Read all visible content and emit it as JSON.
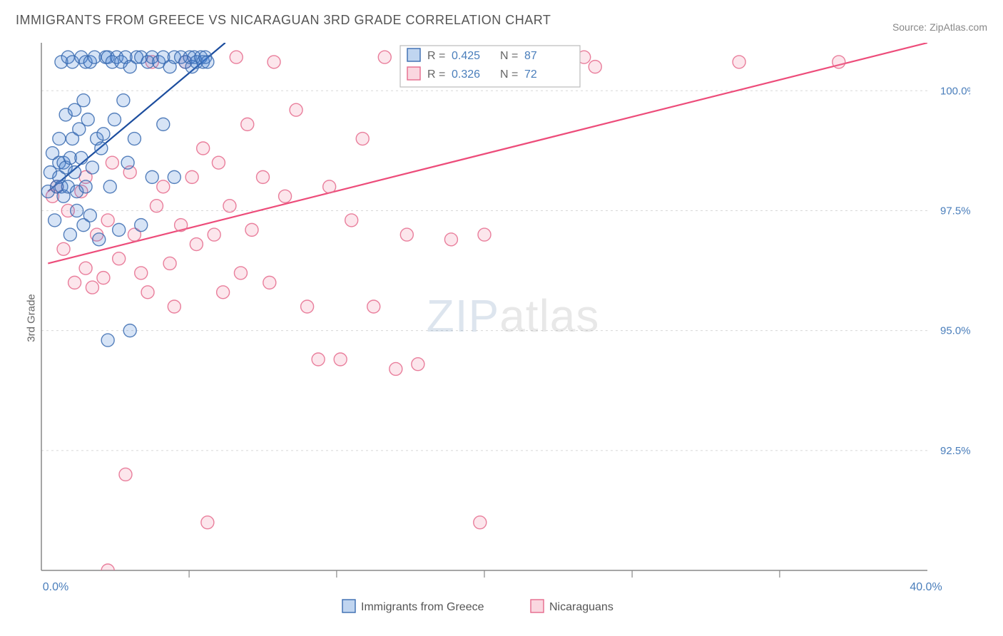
{
  "title": "IMMIGRANTS FROM GREECE VS NICARAGUAN 3RD GRADE CORRELATION CHART",
  "source_label": "Source:",
  "source_name": "ZipAtlas.com",
  "y_axis_label": "3rd Grade",
  "watermark_zip": "ZIP",
  "watermark_atlas": "atlas",
  "chart": {
    "type": "scatter",
    "background_color": "#ffffff",
    "grid_color": "#d8d8d8",
    "axis_color": "#888888",
    "x_range": [
      0,
      40
    ],
    "y_range": [
      90,
      101
    ],
    "x_ticks": [
      0,
      40
    ],
    "x_tick_labels": [
      "0.0%",
      "40.0%"
    ],
    "x_minor_ticks": [
      6.67,
      13.33,
      20,
      26.67,
      33.33
    ],
    "y_ticks": [
      92.5,
      95.0,
      97.5,
      100.0
    ],
    "y_tick_labels": [
      "92.5%",
      "95.0%",
      "97.5%",
      "100.0%"
    ],
    "tick_label_color": "#4a7ebb",
    "marker_radius": 9,
    "marker_fill_opacity": 0.22,
    "marker_stroke_opacity": 0.85,
    "line_width": 2.2
  },
  "series": [
    {
      "name": "Immigrants from Greece",
      "color": "#4a86d4",
      "stroke": "#3a6bb0",
      "line_color": "#1c4d9e",
      "r_label": "R =",
      "r_value": "0.425",
      "n_label": "N =",
      "n_value": "87",
      "regression": {
        "x1": 0.3,
        "y1": 97.9,
        "x2": 8.3,
        "y2": 101.0
      },
      "points": [
        [
          0.3,
          97.9
        ],
        [
          0.4,
          98.3
        ],
        [
          0.5,
          98.7
        ],
        [
          0.6,
          97.3
        ],
        [
          0.7,
          98.0
        ],
        [
          0.8,
          98.2
        ],
        [
          0.8,
          99.0
        ],
        [
          0.8,
          98.5
        ],
        [
          0.9,
          98.0
        ],
        [
          0.9,
          100.6
        ],
        [
          1.0,
          98.5
        ],
        [
          1.0,
          97.8
        ],
        [
          1.1,
          98.4
        ],
        [
          1.1,
          99.5
        ],
        [
          1.2,
          98.0
        ],
        [
          1.2,
          100.7
        ],
        [
          1.3,
          97.0
        ],
        [
          1.3,
          98.6
        ],
        [
          1.4,
          99.0
        ],
        [
          1.4,
          100.6
        ],
        [
          1.5,
          98.3
        ],
        [
          1.5,
          99.6
        ],
        [
          1.6,
          97.5
        ],
        [
          1.6,
          97.9
        ],
        [
          1.7,
          99.2
        ],
        [
          1.8,
          100.7
        ],
        [
          1.8,
          98.6
        ],
        [
          1.9,
          97.2
        ],
        [
          1.9,
          99.8
        ],
        [
          2.0,
          100.6
        ],
        [
          2.0,
          98.0
        ],
        [
          2.1,
          99.4
        ],
        [
          2.2,
          100.6
        ],
        [
          2.2,
          97.4
        ],
        [
          2.3,
          98.4
        ],
        [
          2.4,
          100.7
        ],
        [
          2.5,
          99.0
        ],
        [
          2.6,
          96.9
        ],
        [
          2.7,
          98.8
        ],
        [
          2.8,
          99.1
        ],
        [
          2.9,
          100.7
        ],
        [
          3.0,
          94.8
        ],
        [
          3.0,
          100.7
        ],
        [
          3.1,
          98.0
        ],
        [
          3.2,
          100.6
        ],
        [
          3.3,
          99.4
        ],
        [
          3.4,
          100.7
        ],
        [
          3.5,
          97.1
        ],
        [
          3.6,
          100.6
        ],
        [
          3.7,
          99.8
        ],
        [
          3.8,
          100.7
        ],
        [
          3.9,
          98.5
        ],
        [
          4.0,
          95.0
        ],
        [
          4.0,
          100.5
        ],
        [
          4.2,
          99.0
        ],
        [
          4.3,
          100.7
        ],
        [
          4.5,
          97.2
        ],
        [
          4.5,
          100.7
        ],
        [
          4.8,
          100.6
        ],
        [
          5.0,
          98.2
        ],
        [
          5.0,
          100.7
        ],
        [
          5.3,
          100.6
        ],
        [
          5.5,
          99.3
        ],
        [
          5.5,
          100.7
        ],
        [
          5.8,
          100.5
        ],
        [
          6.0,
          98.2
        ],
        [
          6.0,
          100.7
        ],
        [
          6.3,
          100.7
        ],
        [
          6.5,
          100.6
        ],
        [
          6.7,
          100.7
        ],
        [
          6.8,
          100.5
        ],
        [
          6.9,
          100.7
        ],
        [
          7.0,
          100.6
        ],
        [
          7.2,
          100.7
        ],
        [
          7.3,
          100.6
        ],
        [
          7.4,
          100.7
        ],
        [
          7.5,
          100.6
        ]
      ]
    },
    {
      "name": "Nicaraguans",
      "color": "#f28ba7",
      "stroke": "#e56a8c",
      "line_color": "#ed4c7a",
      "r_label": "R =",
      "r_value": "0.326",
      "n_label": "N =",
      "n_value": "72",
      "regression": {
        "x1": 0.3,
        "y1": 96.4,
        "x2": 40.0,
        "y2": 101.0
      },
      "points": [
        [
          0.5,
          97.8
        ],
        [
          0.7,
          98.0
        ],
        [
          1.0,
          96.7
        ],
        [
          1.2,
          97.5
        ],
        [
          1.5,
          96.0
        ],
        [
          1.8,
          97.9
        ],
        [
          2.0,
          96.3
        ],
        [
          2.0,
          98.2
        ],
        [
          2.3,
          95.9
        ],
        [
          2.5,
          97.0
        ],
        [
          2.8,
          96.1
        ],
        [
          3.0,
          97.3
        ],
        [
          3.0,
          90.0
        ],
        [
          3.2,
          98.5
        ],
        [
          3.5,
          96.5
        ],
        [
          3.8,
          92.0
        ],
        [
          4.0,
          98.3
        ],
        [
          4.2,
          97.0
        ],
        [
          4.5,
          96.2
        ],
        [
          4.8,
          95.8
        ],
        [
          5.0,
          100.6
        ],
        [
          5.2,
          97.6
        ],
        [
          5.5,
          98.0
        ],
        [
          5.8,
          96.4
        ],
        [
          6.0,
          95.5
        ],
        [
          6.3,
          97.2
        ],
        [
          6.5,
          100.6
        ],
        [
          6.8,
          98.2
        ],
        [
          7.0,
          96.8
        ],
        [
          7.3,
          98.8
        ],
        [
          7.5,
          91.0
        ],
        [
          7.8,
          97.0
        ],
        [
          8.0,
          98.5
        ],
        [
          8.2,
          95.8
        ],
        [
          8.5,
          97.6
        ],
        [
          8.8,
          100.7
        ],
        [
          9.0,
          96.2
        ],
        [
          9.3,
          99.3
        ],
        [
          9.5,
          97.1
        ],
        [
          10.0,
          98.2
        ],
        [
          10.3,
          96.0
        ],
        [
          10.5,
          100.6
        ],
        [
          11.0,
          97.8
        ],
        [
          11.5,
          99.6
        ],
        [
          12.0,
          95.5
        ],
        [
          12.5,
          94.4
        ],
        [
          13.0,
          98.0
        ],
        [
          13.5,
          94.4
        ],
        [
          14.0,
          97.3
        ],
        [
          14.5,
          99.0
        ],
        [
          15.0,
          95.5
        ],
        [
          15.5,
          100.7
        ],
        [
          16.0,
          94.2
        ],
        [
          16.5,
          97.0
        ],
        [
          17.0,
          94.3
        ],
        [
          18.5,
          96.9
        ],
        [
          19.5,
          100.7
        ],
        [
          19.8,
          91.0
        ],
        [
          20.0,
          97.0
        ],
        [
          21.0,
          100.6
        ],
        [
          24.5,
          100.7
        ],
        [
          25.0,
          100.5
        ],
        [
          31.5,
          100.6
        ],
        [
          36.0,
          100.6
        ]
      ]
    }
  ],
  "legend_top": {
    "border_color": "#bbbbbb",
    "bg": "#ffffff",
    "label_color": "#666666",
    "value_color": "#4a7ebb"
  },
  "legend_bottom": {
    "items": [
      "Immigrants from Greece",
      "Nicaraguans"
    ]
  }
}
